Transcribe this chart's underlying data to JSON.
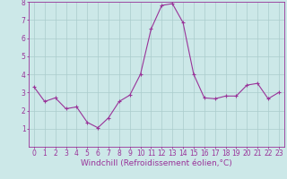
{
  "x": [
    0,
    1,
    2,
    3,
    4,
    5,
    6,
    7,
    8,
    9,
    10,
    11,
    12,
    13,
    14,
    15,
    16,
    17,
    18,
    19,
    20,
    21,
    22,
    23
  ],
  "y": [
    3.3,
    2.5,
    2.7,
    2.1,
    2.2,
    1.35,
    1.05,
    1.6,
    2.5,
    2.85,
    4.0,
    6.5,
    7.8,
    7.9,
    6.85,
    4.0,
    2.7,
    2.65,
    2.8,
    2.8,
    3.4,
    3.5,
    2.65,
    3.0
  ],
  "ylim": [
    0,
    8
  ],
  "yticks": [
    1,
    2,
    3,
    4,
    5,
    6,
    7,
    8
  ],
  "xticks": [
    0,
    1,
    2,
    3,
    4,
    5,
    6,
    7,
    8,
    9,
    10,
    11,
    12,
    13,
    14,
    15,
    16,
    17,
    18,
    19,
    20,
    21,
    22,
    23
  ],
  "xlabel": "Windchill (Refroidissement éolien,°C)",
  "line_color": "#993399",
  "marker": "+",
  "marker_size": 3,
  "bg_color": "#cce8e8",
  "grid_color": "#aacccc",
  "tick_color": "#993399",
  "label_color": "#993399",
  "axis_color": "#993399",
  "tick_fontsize": 5.5,
  "xlabel_fontsize": 6.5
}
